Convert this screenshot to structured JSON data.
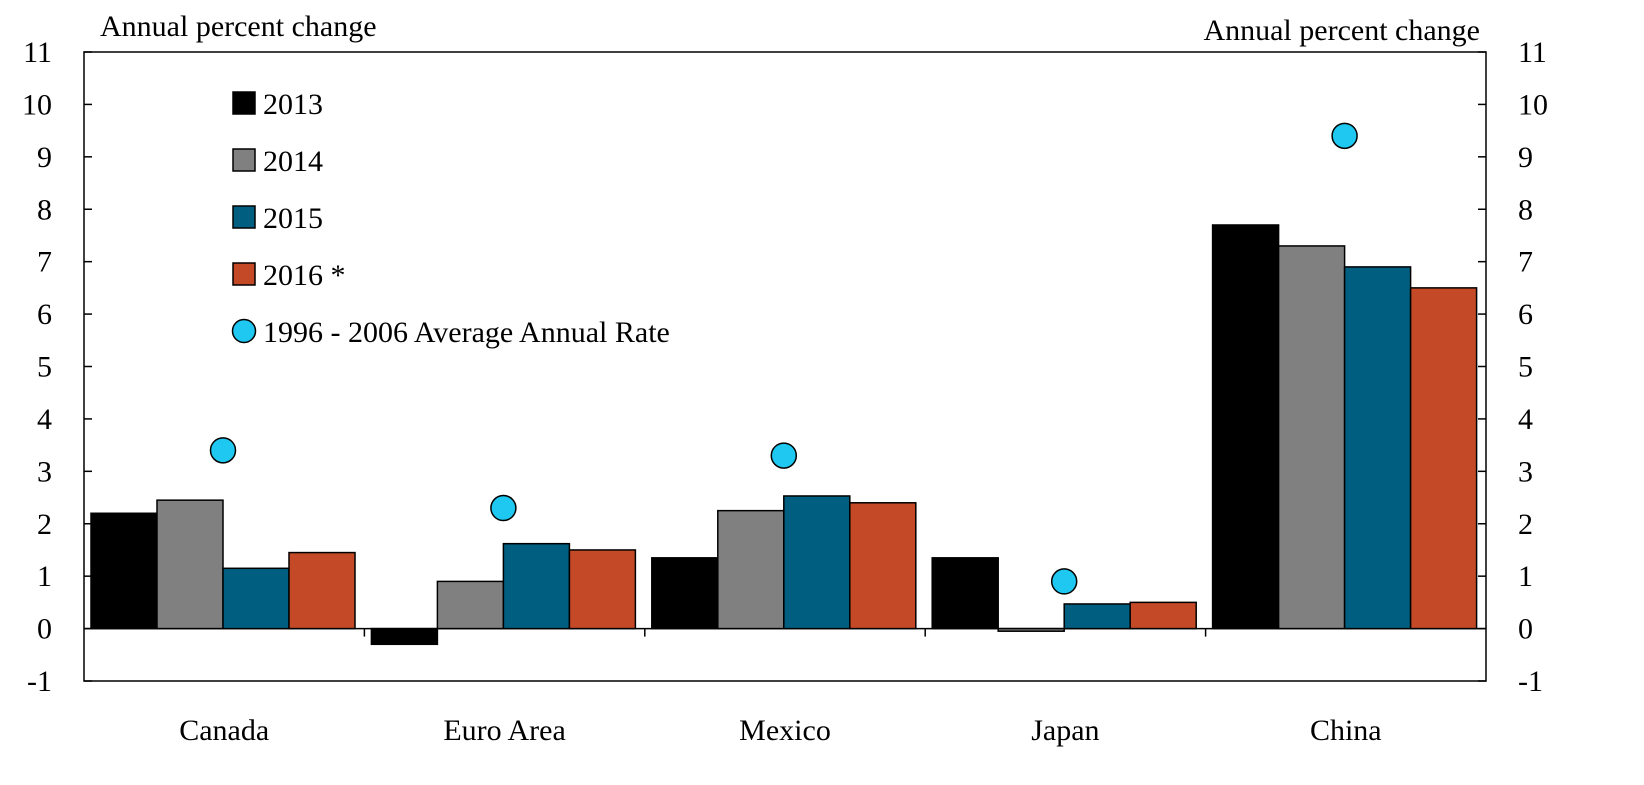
{
  "chart_data": {
    "type": "bar",
    "title": "",
    "ylabel_left": "Annual percent change",
    "ylabel_right": "Annual percent change",
    "ylim": [
      -1,
      11
    ],
    "yticks": [
      -1,
      0,
      1,
      2,
      3,
      4,
      5,
      6,
      7,
      8,
      9,
      10,
      11
    ],
    "grid": false,
    "legend_position": "top-left",
    "categories": [
      "Canada",
      "Euro Area",
      "Mexico",
      "Japan",
      "China"
    ],
    "series": [
      {
        "name": "2013",
        "color": "#000000",
        "values": [
          2.2,
          -0.3,
          1.35,
          1.35,
          7.7
        ]
      },
      {
        "name": "2014",
        "color": "#808080",
        "values": [
          2.45,
          0.9,
          2.25,
          -0.05,
          7.3
        ]
      },
      {
        "name": "2015",
        "color": "#005f80",
        "values": [
          1.15,
          1.62,
          2.53,
          0.47,
          6.9
        ]
      },
      {
        "name": "2016 *",
        "color": "#c44a27",
        "values": [
          1.45,
          1.5,
          2.4,
          0.5,
          6.5
        ]
      }
    ],
    "markers": {
      "name": "1996 - 2006 Average Annual Rate",
      "color": "#1ec8f0",
      "values": [
        3.4,
        2.3,
        3.3,
        0.9,
        9.4
      ]
    }
  }
}
